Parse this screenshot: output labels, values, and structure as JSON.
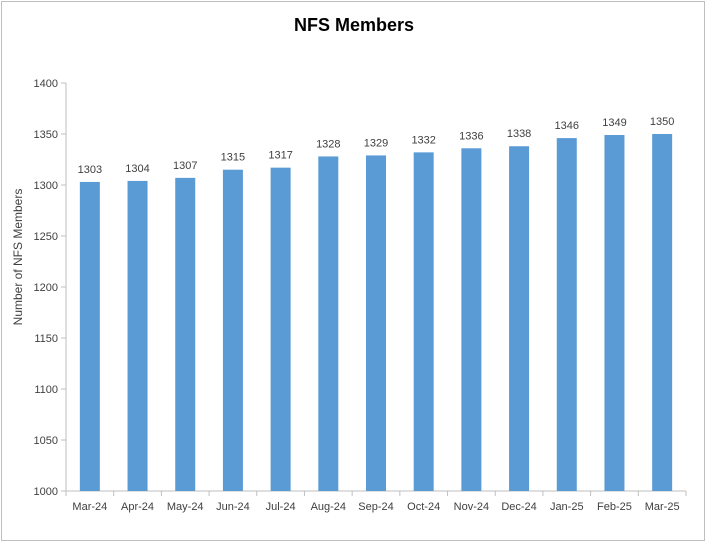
{
  "chart_data": {
    "type": "bar",
    "title": "NFS Members",
    "xlabel": "",
    "ylabel": "Number of NFS Members",
    "categories": [
      "Mar-24",
      "Apr-24",
      "May-24",
      "Jun-24",
      "Jul-24",
      "Aug-24",
      "Sep-24",
      "Oct-24",
      "Nov-24",
      "Dec-24",
      "Jan-25",
      "Feb-25",
      "Mar-25"
    ],
    "values": [
      1303,
      1304,
      1307,
      1315,
      1317,
      1328,
      1329,
      1332,
      1336,
      1338,
      1346,
      1349,
      1350
    ],
    "ylim": [
      1000,
      1400
    ],
    "yticks": [
      1000,
      1050,
      1100,
      1150,
      1200,
      1250,
      1300,
      1350,
      1400
    ],
    "grid": false,
    "data_labels": true,
    "bar_color": "#5b9bd5",
    "axis_color": "#bfbfbf"
  }
}
